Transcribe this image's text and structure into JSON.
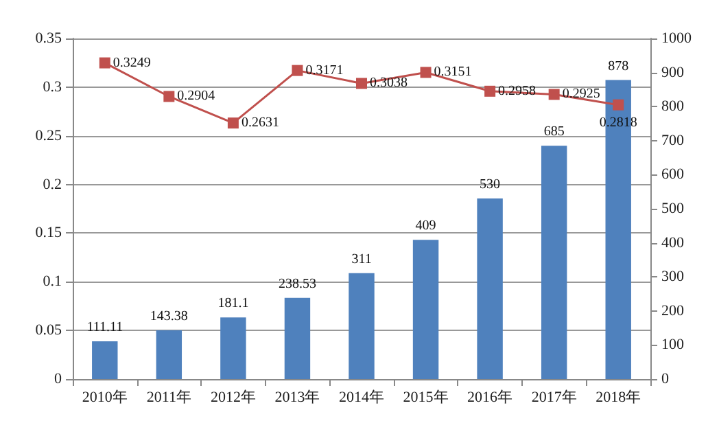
{
  "chart_data": {
    "type": "bar",
    "categories": [
      "2010年",
      "2011年",
      "2012年",
      "2013年",
      "2014年",
      "2015年",
      "2016年",
      "2017年",
      "2018年"
    ],
    "series": [
      {
        "axis": "y2",
        "color": "#4f81bd",
        "values": [
          111.11,
          143.38,
          181.1,
          238.53,
          311,
          409,
          530,
          685,
          878
        ],
        "value_labels": [
          "111.11",
          "143.38",
          "181.1",
          "238.53",
          "311",
          "409",
          "530",
          "685",
          "878"
        ]
      },
      {
        "type": "line",
        "axis": "y",
        "color": "#c0504d",
        "marker": "square",
        "values": [
          0.3249,
          0.2904,
          0.2631,
          0.3171,
          0.3038,
          0.3151,
          0.2958,
          0.2925,
          0.2818
        ],
        "value_labels": [
          "0.3249",
          "0.2904",
          "0.2631",
          "0.3171",
          "0.3038",
          "0.3151",
          "0.2958",
          "0.2925",
          "0.2818"
        ]
      }
    ],
    "ylim": [
      0,
      0.35
    ],
    "yticks": [
      0,
      0.05,
      0.1,
      0.15,
      0.2,
      0.25,
      0.3,
      0.35
    ],
    "y2lim": [
      0,
      1000
    ],
    "y2ticks": [
      0,
      100,
      200,
      300,
      400,
      500,
      600,
      700,
      800,
      900,
      1000
    ],
    "grid": "y"
  }
}
